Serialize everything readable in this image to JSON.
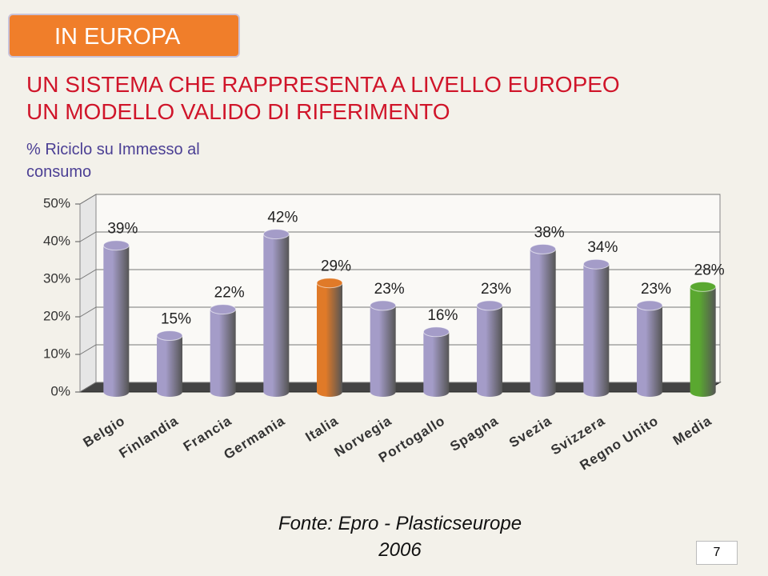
{
  "slide": {
    "badge": "IN EUROPA",
    "title_lines": [
      "UN SISTEMA CHE RAPPRESENTA A LIVELLO EUROPEO",
      "UN MODELLO VALIDO DI RIFERIMENTO"
    ],
    "source_lines": [
      "Fonte: Epro - Plasticseurope",
      "2006"
    ],
    "page": 7
  },
  "chart_data": {
    "type": "bar",
    "subtitle": "% Riciclo su Immesso al consumo",
    "categories": [
      "Belgio",
      "Finlandia",
      "Francia",
      "Germania",
      "Italia",
      "Norvegia",
      "Portogallo",
      "Spagna",
      "Svezia",
      "Svizzera",
      "Regno Unito",
      "Media"
    ],
    "values": [
      39,
      15,
      22,
      42,
      29,
      23,
      16,
      23,
      38,
      34,
      23,
      28
    ],
    "value_labels": [
      "39%",
      "15%",
      "22%",
      "42%",
      "29%",
      "23%",
      "16%",
      "23%",
      "38%",
      "34%",
      "23%",
      "28%"
    ],
    "colors": [
      "#a49cc8",
      "#a49cc8",
      "#a49cc8",
      "#a49cc8",
      "#e07a28",
      "#a49cc8",
      "#a49cc8",
      "#a49cc8",
      "#a49cc8",
      "#a49cc8",
      "#a49cc8",
      "#5aa830"
    ],
    "ylim": [
      0,
      50
    ],
    "yticks": [
      {
        "value": 0,
        "label": "0%"
      },
      {
        "value": 10,
        "label": "10%"
      },
      {
        "value": 20,
        "label": "20%"
      },
      {
        "value": 30,
        "label": "30%"
      },
      {
        "value": 40,
        "label": "40%"
      },
      {
        "value": 50,
        "label": "50%"
      }
    ],
    "grid": true
  }
}
